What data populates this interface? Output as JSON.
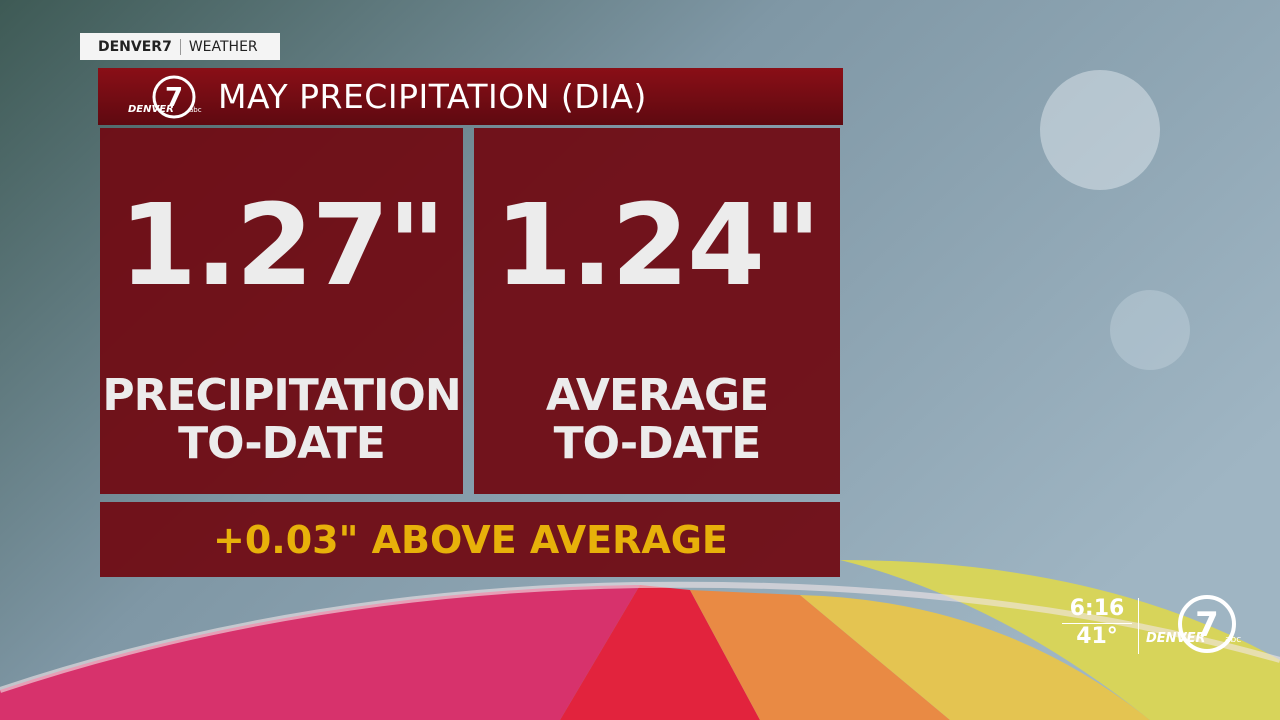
{
  "header": {
    "brand": "DENVER7",
    "section": "WEATHER"
  },
  "logo": {
    "number": "7",
    "wordmark": "DENVER",
    "network": "abc"
  },
  "title": "MAY PRECIPITATION (DIA)",
  "panels": [
    {
      "value": "1.27\"",
      "label_lines": [
        "PRECIPITATION",
        "TO-DATE"
      ]
    },
    {
      "value": "1.24\"",
      "label_lines": [
        "AVERAGE",
        "TO-DATE"
      ]
    }
  ],
  "summary": "+0.03\" ABOVE AVERAGE",
  "status": {
    "time": "6:16",
    "temperature": "41°"
  }
}
